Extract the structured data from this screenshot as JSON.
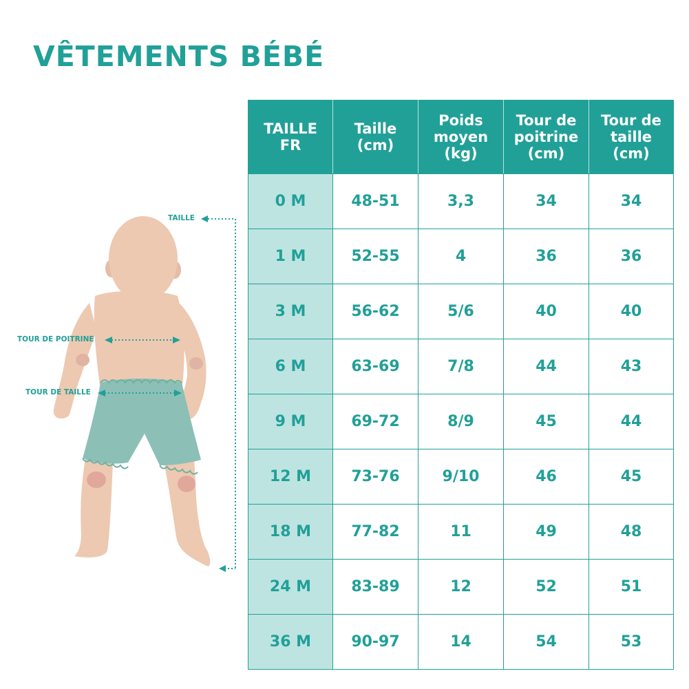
{
  "title": "VÊTEMENTS BÉBÉ",
  "table": {
    "headers": [
      [
        "TAILLE",
        "FR"
      ],
      [
        "Taille",
        "(cm)"
      ],
      [
        "Poids",
        "moyen",
        "(kg)"
      ],
      [
        "Tour de",
        "poitrine",
        "(cm)"
      ],
      [
        "Tour de",
        "taille",
        "(cm)"
      ]
    ],
    "rows": [
      [
        "0 M",
        "48-51",
        "3,3",
        "34",
        "34"
      ],
      [
        "1 M",
        "52-55",
        "4",
        "36",
        "36"
      ],
      [
        "3 M",
        "56-62",
        "5/6",
        "40",
        "40"
      ],
      [
        "6 M",
        "63-69",
        "7/8",
        "44",
        "43"
      ],
      [
        "9 M",
        "69-72",
        "8/9",
        "45",
        "44"
      ],
      [
        "12 M",
        "73-76",
        "9/10",
        "46",
        "45"
      ],
      [
        "18 M",
        "77-82",
        "11",
        "49",
        "48"
      ],
      [
        "24 M",
        "83-89",
        "12",
        "52",
        "51"
      ],
      [
        "36 M",
        "90-97",
        "14",
        "54",
        "53"
      ]
    ]
  },
  "measures": {
    "height_label": "TAILLE",
    "chest_label": "TOUR DE POITRINE",
    "waist_label": "TOUR DE TAILLE"
  },
  "colors": {
    "accent": "#21a098",
    "first_column": "#bde4e1",
    "skin": "#edc9b1",
    "shorts": "#8cc0b6"
  }
}
